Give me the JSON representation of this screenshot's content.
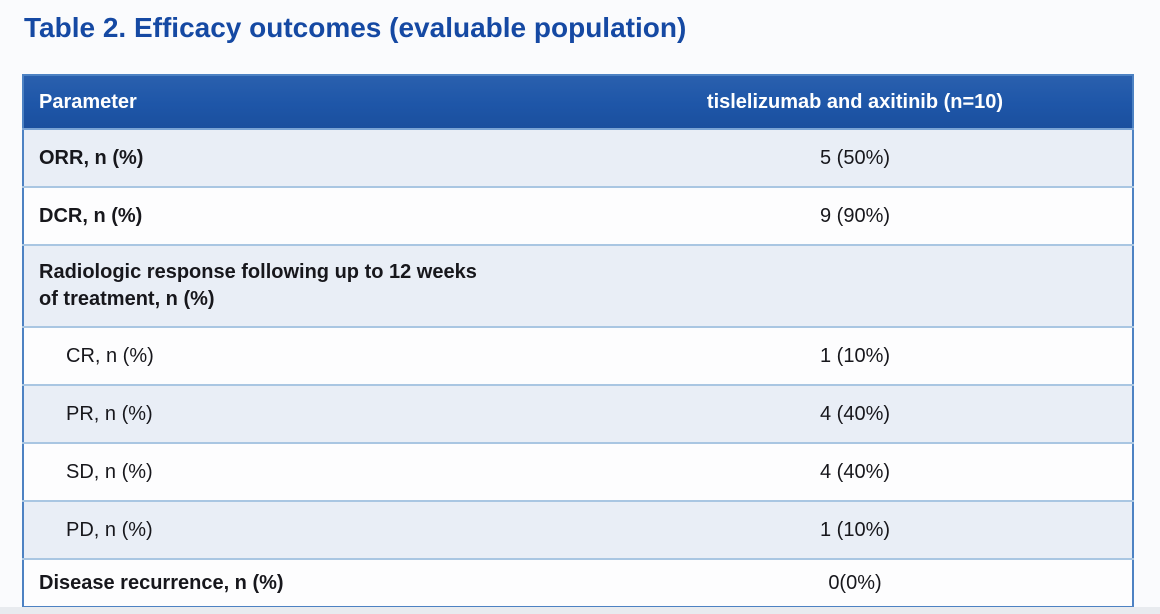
{
  "page": {
    "title": "Table 2. Efficacy outcomes (evaluable population)"
  },
  "table": {
    "columns": {
      "parameter": "Parameter",
      "treatment": "tislelizumab and axitinib (n=10)"
    },
    "rows": [
      {
        "label": "ORR, n (%)",
        "value": "5 (50%)"
      },
      {
        "label": "DCR, n (%)",
        "value": "9 (90%)"
      },
      {
        "label": "Radiologic response following up to 12 weeks of treatment, n (%)",
        "value": ""
      },
      {
        "label": "CR, n (%)",
        "value": "1 (10%)"
      },
      {
        "label": "PR, n (%)",
        "value": "4 (40%)"
      },
      {
        "label": "SD, n (%)",
        "value": "4 (40%)"
      },
      {
        "label": "PD, n (%)",
        "value": "1 (10%)"
      },
      {
        "label": "Disease recurrence, n (%)",
        "value": "0(0%)"
      }
    ]
  },
  "colors": {
    "title_text": "#1549a3",
    "header_bg": "#1e56a8",
    "header_text": "#ffffff",
    "stripe_row_bg": "#e9eef6",
    "plain_row_bg": "#fdfdfe",
    "outer_border": "#4d82c3",
    "row_separator": "#a9c6e2",
    "body_text": "#17171c"
  }
}
